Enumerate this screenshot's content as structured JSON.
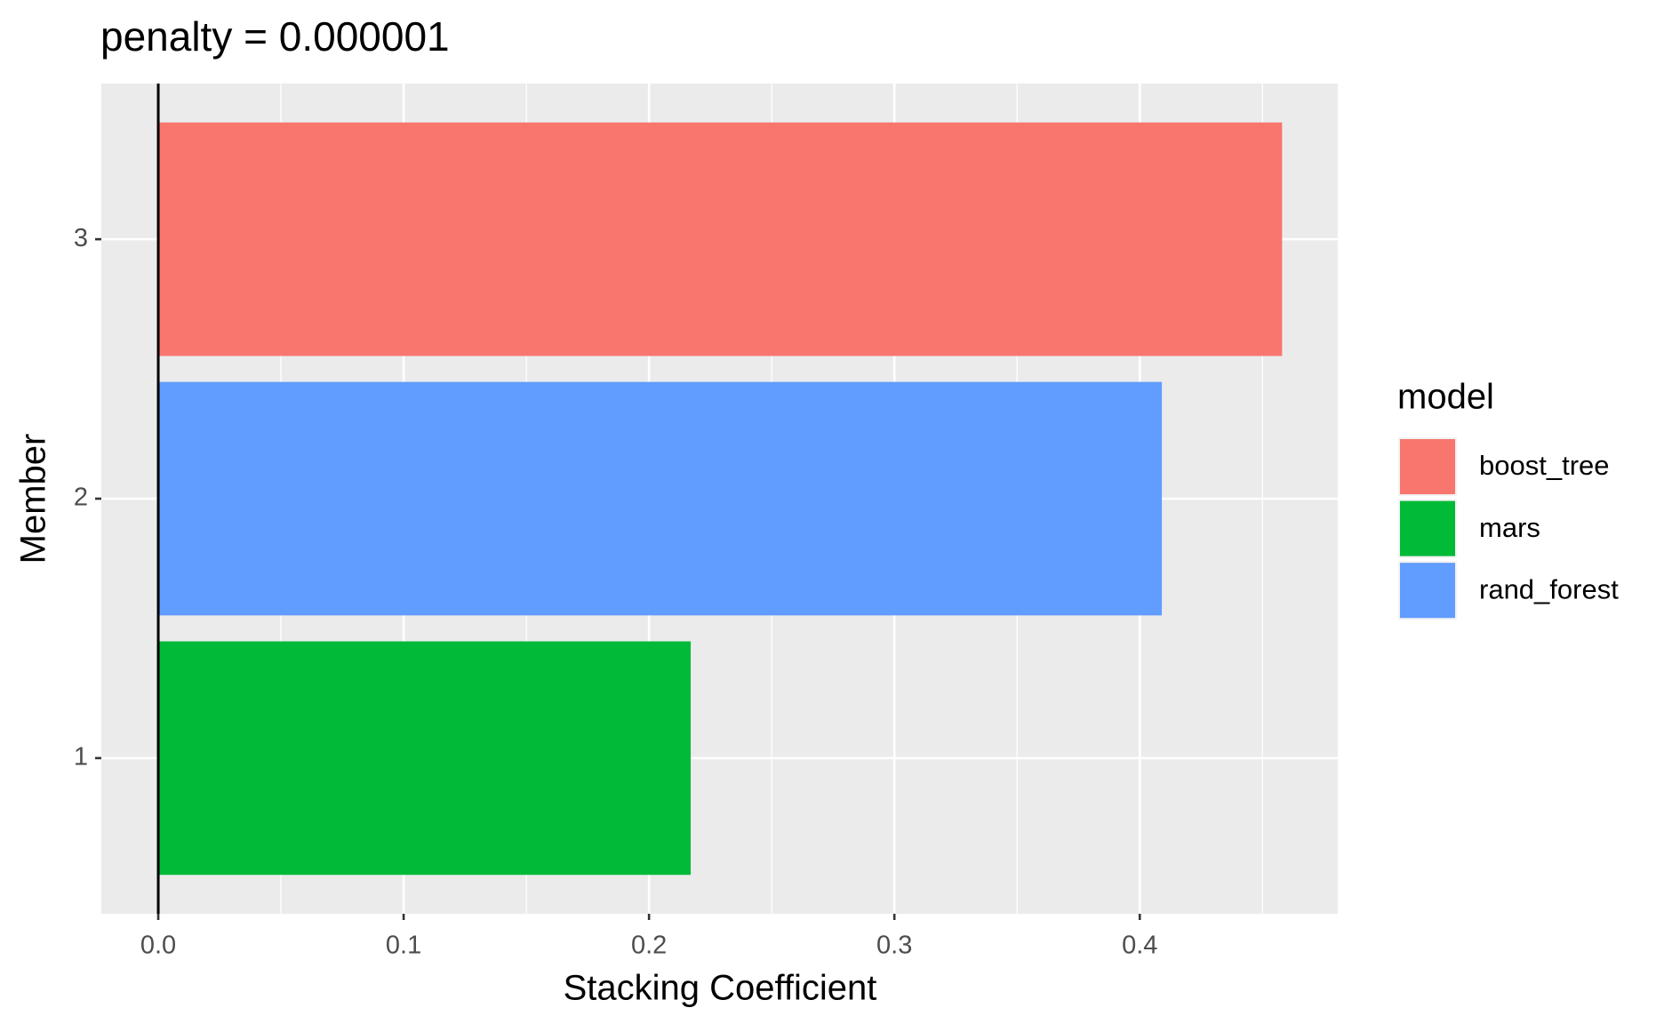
{
  "chart_data": {
    "type": "bar",
    "orientation": "horizontal",
    "title": "penalty = 0.000001",
    "x_label": "Stacking Coefficient",
    "y_label": "Member",
    "categories": [
      "1",
      "2",
      "3"
    ],
    "series": [
      {
        "name": "boost_tree",
        "color": "#F8766D",
        "values": [
          null,
          null,
          0.458
        ]
      },
      {
        "name": "mars",
        "color": "#00BA38",
        "values": [
          0.217,
          null,
          null
        ]
      },
      {
        "name": "rand_forest",
        "color": "#619CFF",
        "values": [
          null,
          0.409,
          null
        ]
      }
    ],
    "legend_title": "model",
    "legend": "right",
    "xlim": [
      -0.0232,
      0.4807
    ],
    "xticks": [
      {
        "value": 0,
        "label": "0.0"
      },
      0.1,
      0.2,
      0.3,
      0.4
    ],
    "grid": true,
    "vline": 0
  }
}
